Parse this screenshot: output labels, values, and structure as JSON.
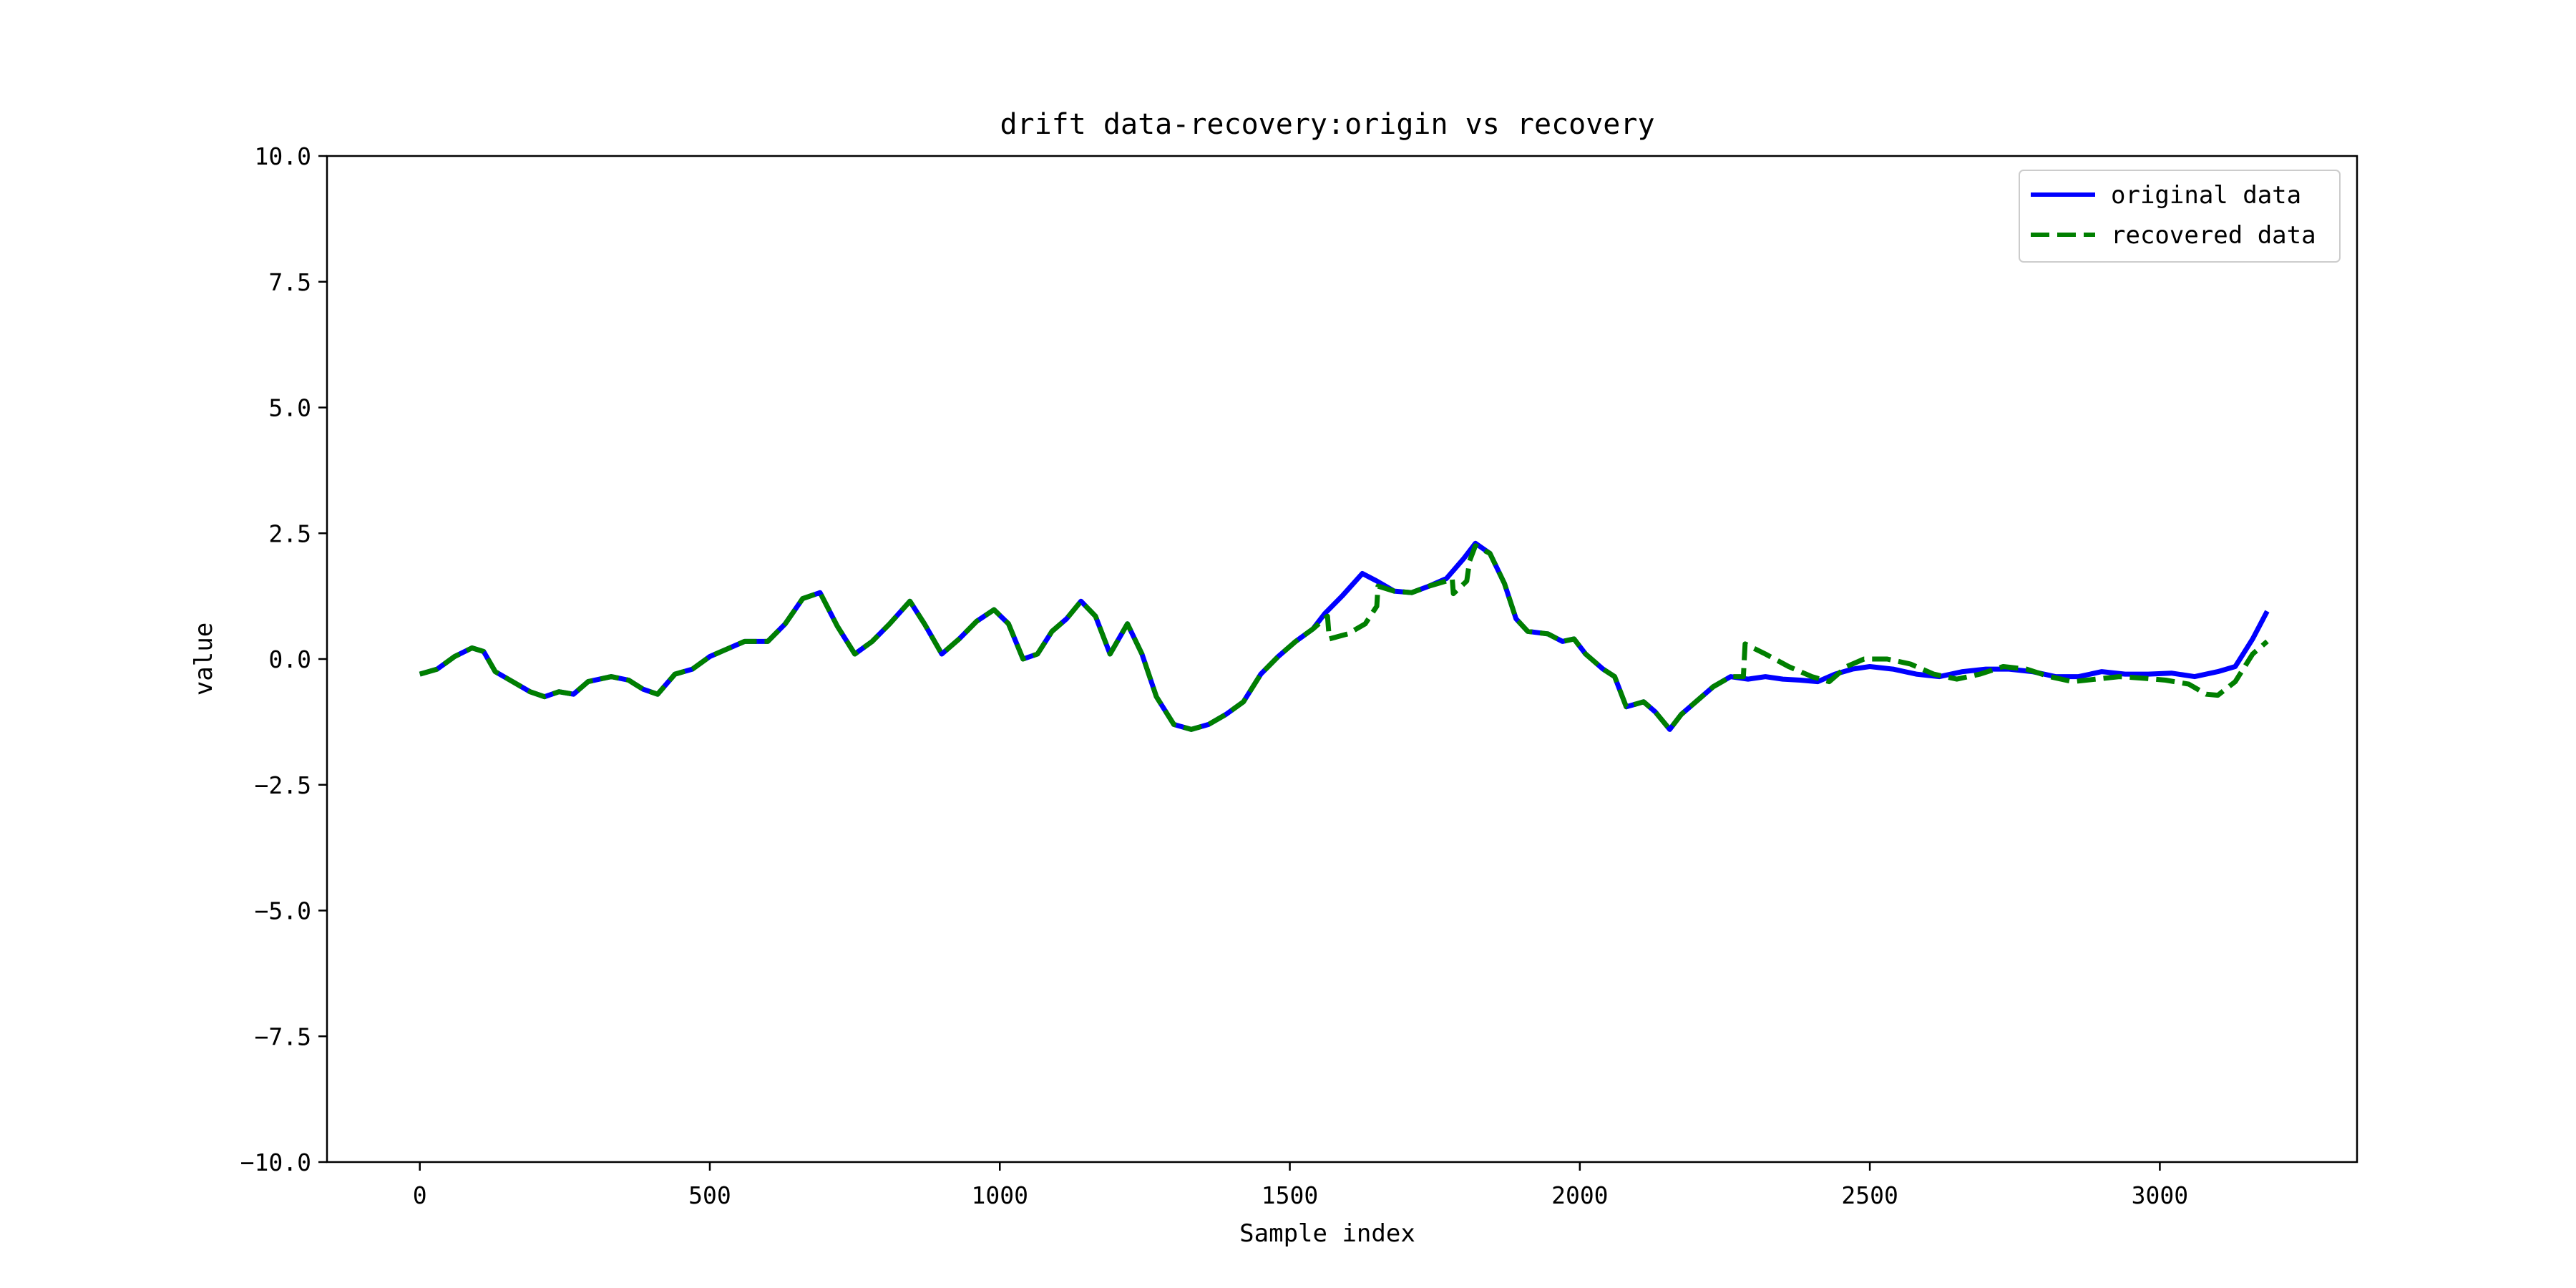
{
  "chart_data": {
    "type": "line",
    "title": "drift data-recovery:origin vs recovery",
    "xlabel": "Sample index",
    "ylabel": "value",
    "xlim": [
      -160,
      3340
    ],
    "ylim": [
      -10,
      10
    ],
    "xticks": [
      0,
      500,
      1000,
      1500,
      2000,
      2500,
      3000
    ],
    "xtick_labels": [
      "0",
      "500",
      "1000",
      "1500",
      "2000",
      "2500",
      "3000"
    ],
    "yticks": [
      10,
      7.5,
      5,
      2.5,
      0,
      -2.5,
      -5,
      -7.5,
      -10
    ],
    "ytick_labels": [
      "10.0",
      "7.5",
      "5.0",
      "2.5",
      "0.0",
      "−2.5",
      "−5.0",
      "−7.5",
      "−10.0"
    ],
    "grid": false,
    "legend_position": "top-right",
    "series": [
      {
        "name": "original data",
        "color": "#0000ff",
        "style": "solid",
        "points": [
          [
            0,
            -0.3
          ],
          [
            30,
            -0.2
          ],
          [
            60,
            0.05
          ],
          [
            90,
            0.22
          ],
          [
            110,
            0.15
          ],
          [
            130,
            -0.25
          ],
          [
            160,
            -0.45
          ],
          [
            190,
            -0.65
          ],
          [
            215,
            -0.75
          ],
          [
            240,
            -0.65
          ],
          [
            265,
            -0.7
          ],
          [
            290,
            -0.45
          ],
          [
            330,
            -0.35
          ],
          [
            360,
            -0.42
          ],
          [
            385,
            -0.6
          ],
          [
            410,
            -0.7
          ],
          [
            440,
            -0.3
          ],
          [
            470,
            -0.2
          ],
          [
            500,
            0.05
          ],
          [
            530,
            0.2
          ],
          [
            560,
            0.35
          ],
          [
            600,
            0.35
          ],
          [
            630,
            0.7
          ],
          [
            660,
            1.2
          ],
          [
            690,
            1.32
          ],
          [
            720,
            0.65
          ],
          [
            750,
            0.1
          ],
          [
            780,
            0.35
          ],
          [
            810,
            0.7
          ],
          [
            845,
            1.15
          ],
          [
            870,
            0.7
          ],
          [
            900,
            0.1
          ],
          [
            930,
            0.4
          ],
          [
            960,
            0.75
          ],
          [
            990,
            0.98
          ],
          [
            1015,
            0.7
          ],
          [
            1040,
            0.0
          ],
          [
            1065,
            0.1
          ],
          [
            1090,
            0.55
          ],
          [
            1115,
            0.8
          ],
          [
            1140,
            1.15
          ],
          [
            1165,
            0.85
          ],
          [
            1190,
            0.1
          ],
          [
            1220,
            0.7
          ],
          [
            1245,
            0.1
          ],
          [
            1270,
            -0.75
          ],
          [
            1300,
            -1.3
          ],
          [
            1330,
            -1.4
          ],
          [
            1360,
            -1.3
          ],
          [
            1390,
            -1.1
          ],
          [
            1420,
            -0.85
          ],
          [
            1450,
            -0.3
          ],
          [
            1480,
            0.05
          ],
          [
            1510,
            0.35
          ],
          [
            1540,
            0.6
          ],
          [
            1560,
            0.9
          ],
          [
            1590,
            1.25
          ],
          [
            1625,
            1.7
          ],
          [
            1650,
            1.55
          ],
          [
            1680,
            1.35
          ],
          [
            1710,
            1.32
          ],
          [
            1740,
            1.45
          ],
          [
            1770,
            1.6
          ],
          [
            1800,
            2.0
          ],
          [
            1820,
            2.3
          ],
          [
            1845,
            2.1
          ],
          [
            1870,
            1.5
          ],
          [
            1890,
            0.8
          ],
          [
            1910,
            0.55
          ],
          [
            1945,
            0.5
          ],
          [
            1970,
            0.35
          ],
          [
            1990,
            0.4
          ],
          [
            2010,
            0.1
          ],
          [
            2040,
            -0.2
          ],
          [
            2060,
            -0.35
          ],
          [
            2080,
            -0.95
          ],
          [
            2110,
            -0.85
          ],
          [
            2130,
            -1.05
          ],
          [
            2155,
            -1.4
          ],
          [
            2175,
            -1.1
          ],
          [
            2200,
            -0.85
          ],
          [
            2230,
            -0.55
          ],
          [
            2260,
            -0.35
          ],
          [
            2290,
            -0.4
          ],
          [
            2320,
            -0.35
          ],
          [
            2350,
            -0.4
          ],
          [
            2380,
            -0.42
          ],
          [
            2410,
            -0.45
          ],
          [
            2440,
            -0.3
          ],
          [
            2470,
            -0.2
          ],
          [
            2500,
            -0.15
          ],
          [
            2540,
            -0.2
          ],
          [
            2580,
            -0.3
          ],
          [
            2620,
            -0.35
          ],
          [
            2660,
            -0.25
          ],
          [
            2700,
            -0.2
          ],
          [
            2740,
            -0.2
          ],
          [
            2780,
            -0.25
          ],
          [
            2820,
            -0.35
          ],
          [
            2860,
            -0.35
          ],
          [
            2900,
            -0.25
          ],
          [
            2940,
            -0.3
          ],
          [
            2980,
            -0.3
          ],
          [
            3020,
            -0.28
          ],
          [
            3060,
            -0.35
          ],
          [
            3100,
            -0.25
          ],
          [
            3130,
            -0.15
          ],
          [
            3160,
            0.4
          ],
          [
            3185,
            0.95
          ]
        ]
      },
      {
        "name": "recovered data",
        "color": "#007f00",
        "style": "dashed",
        "points": [
          [
            0,
            -0.3
          ],
          [
            30,
            -0.2
          ],
          [
            60,
            0.05
          ],
          [
            90,
            0.22
          ],
          [
            110,
            0.15
          ],
          [
            130,
            -0.25
          ],
          [
            160,
            -0.45
          ],
          [
            190,
            -0.65
          ],
          [
            215,
            -0.75
          ],
          [
            240,
            -0.65
          ],
          [
            265,
            -0.7
          ],
          [
            290,
            -0.45
          ],
          [
            330,
            -0.35
          ],
          [
            360,
            -0.42
          ],
          [
            385,
            -0.6
          ],
          [
            410,
            -0.7
          ],
          [
            440,
            -0.3
          ],
          [
            470,
            -0.2
          ],
          [
            500,
            0.05
          ],
          [
            530,
            0.2
          ],
          [
            560,
            0.35
          ],
          [
            600,
            0.35
          ],
          [
            630,
            0.7
          ],
          [
            660,
            1.2
          ],
          [
            690,
            1.32
          ],
          [
            720,
            0.65
          ],
          [
            750,
            0.1
          ],
          [
            780,
            0.35
          ],
          [
            810,
            0.7
          ],
          [
            845,
            1.15
          ],
          [
            870,
            0.7
          ],
          [
            900,
            0.1
          ],
          [
            930,
            0.4
          ],
          [
            960,
            0.75
          ],
          [
            990,
            0.98
          ],
          [
            1015,
            0.7
          ],
          [
            1040,
            0.0
          ],
          [
            1065,
            0.1
          ],
          [
            1090,
            0.55
          ],
          [
            1115,
            0.8
          ],
          [
            1140,
            1.15
          ],
          [
            1165,
            0.85
          ],
          [
            1190,
            0.1
          ],
          [
            1220,
            0.7
          ],
          [
            1245,
            0.1
          ],
          [
            1270,
            -0.75
          ],
          [
            1300,
            -1.3
          ],
          [
            1330,
            -1.4
          ],
          [
            1360,
            -1.3
          ],
          [
            1390,
            -1.1
          ],
          [
            1420,
            -0.85
          ],
          [
            1450,
            -0.3
          ],
          [
            1480,
            0.05
          ],
          [
            1510,
            0.35
          ],
          [
            1540,
            0.6
          ],
          [
            1565,
            0.85
          ],
          [
            1568,
            0.4
          ],
          [
            1600,
            0.5
          ],
          [
            1630,
            0.7
          ],
          [
            1650,
            1.05
          ],
          [
            1652,
            1.45
          ],
          [
            1680,
            1.35
          ],
          [
            1710,
            1.32
          ],
          [
            1740,
            1.45
          ],
          [
            1770,
            1.55
          ],
          [
            1780,
            1.6
          ],
          [
            1782,
            1.3
          ],
          [
            1805,
            1.55
          ],
          [
            1810,
            1.95
          ],
          [
            1820,
            2.25
          ],
          [
            1845,
            2.1
          ],
          [
            1870,
            1.5
          ],
          [
            1890,
            0.8
          ],
          [
            1910,
            0.55
          ],
          [
            1945,
            0.5
          ],
          [
            1970,
            0.35
          ],
          [
            1990,
            0.4
          ],
          [
            2010,
            0.1
          ],
          [
            2040,
            -0.2
          ],
          [
            2060,
            -0.35
          ],
          [
            2080,
            -0.95
          ],
          [
            2110,
            -0.85
          ],
          [
            2130,
            -1.05
          ],
          [
            2155,
            -1.4
          ],
          [
            2175,
            -1.1
          ],
          [
            2200,
            -0.85
          ],
          [
            2230,
            -0.55
          ],
          [
            2260,
            -0.35
          ],
          [
            2282,
            -0.35
          ],
          [
            2285,
            0.3
          ],
          [
            2320,
            0.1
          ],
          [
            2360,
            -0.15
          ],
          [
            2400,
            -0.35
          ],
          [
            2430,
            -0.45
          ],
          [
            2460,
            -0.15
          ],
          [
            2490,
            0.0
          ],
          [
            2530,
            0.0
          ],
          [
            2570,
            -0.1
          ],
          [
            2610,
            -0.3
          ],
          [
            2650,
            -0.4
          ],
          [
            2690,
            -0.3
          ],
          [
            2730,
            -0.15
          ],
          [
            2770,
            -0.2
          ],
          [
            2810,
            -0.35
          ],
          [
            2850,
            -0.45
          ],
          [
            2890,
            -0.4
          ],
          [
            2930,
            -0.35
          ],
          [
            2970,
            -0.38
          ],
          [
            3010,
            -0.42
          ],
          [
            3050,
            -0.5
          ],
          [
            3080,
            -0.7
          ],
          [
            3100,
            -0.72
          ],
          [
            3130,
            -0.45
          ],
          [
            3160,
            0.1
          ],
          [
            3185,
            0.35
          ]
        ]
      }
    ]
  }
}
